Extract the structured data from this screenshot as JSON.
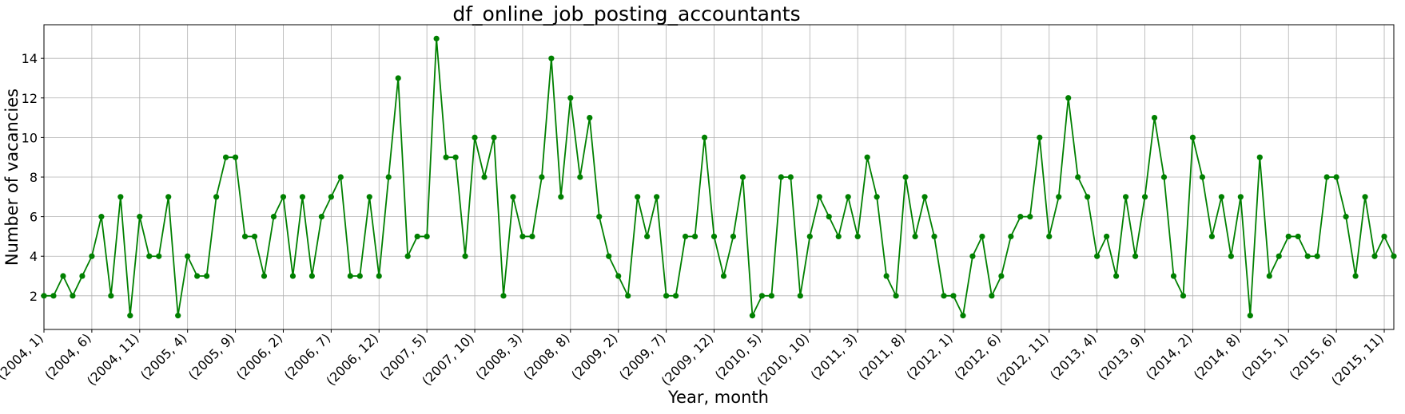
{
  "chart_data": {
    "type": "line",
    "title": "df_online_job_posting_accountants",
    "xlabel": "Year, month",
    "ylabel": "Number of vacancies",
    "x_tick_labels": [
      "(2004, 1)",
      "(2004, 6)",
      "(2004, 11)",
      "(2005, 4)",
      "(2005, 9)",
      "(2006, 2)",
      "(2006, 7)",
      "(2006, 12)",
      "(2007, 5)",
      "(2007, 10)",
      "(2008, 3)",
      "(2008, 8)",
      "(2009, 2)",
      "(2009, 7)",
      "(2009, 12)",
      "(2010, 5)",
      "(2010, 10)",
      "(2011, 3)",
      "(2011, 8)",
      "(2012, 1)",
      "(2012, 6)",
      "(2012, 11)",
      "(2013, 4)",
      "(2013, 9)",
      "(2014, 2)",
      "(2014, 8)",
      "(2015, 1)",
      "(2015, 6)",
      "(2015, 11)"
    ],
    "x_tick_index": [
      0,
      5,
      10,
      15,
      20,
      25,
      30,
      35,
      40,
      45,
      50,
      55,
      60,
      65,
      70,
      75,
      80,
      85,
      90,
      95,
      100,
      105,
      110,
      115,
      120,
      125,
      130,
      135,
      140
    ],
    "y_ticks": [
      2,
      4,
      6,
      8,
      10,
      12,
      14
    ],
    "ylim": [
      0.3,
      15.7
    ],
    "grid": true,
    "line_color": "#008000",
    "values": [
      2,
      2,
      3,
      2,
      3,
      4,
      6,
      2,
      7,
      1,
      6,
      4,
      4,
      7,
      1,
      4,
      3,
      3,
      7,
      9,
      9,
      5,
      5,
      3,
      6,
      7,
      3,
      7,
      3,
      6,
      7,
      8,
      3,
      3,
      7,
      3,
      8,
      13,
      4,
      5,
      5,
      15,
      9,
      9,
      4,
      10,
      8,
      10,
      2,
      7,
      5,
      5,
      8,
      14,
      7,
      12,
      8,
      11,
      6,
      4,
      3,
      2,
      7,
      5,
      7,
      2,
      2,
      5,
      5,
      10,
      5,
      3,
      5,
      8,
      1,
      2,
      2,
      8,
      8,
      2,
      5,
      7,
      6,
      5,
      7,
      5,
      9,
      7,
      3,
      2,
      8,
      5,
      7,
      5,
      2,
      2,
      1,
      4,
      5,
      2,
      3,
      5,
      6,
      6,
      10,
      5,
      7,
      12,
      8,
      7,
      4,
      5,
      3,
      7,
      4,
      7,
      11,
      8,
      3,
      2,
      10,
      8,
      5,
      7,
      4,
      7,
      1,
      9,
      3,
      4,
      5,
      5,
      4,
      4,
      8,
      8,
      6,
      3,
      7,
      4,
      5,
      4
    ]
  }
}
